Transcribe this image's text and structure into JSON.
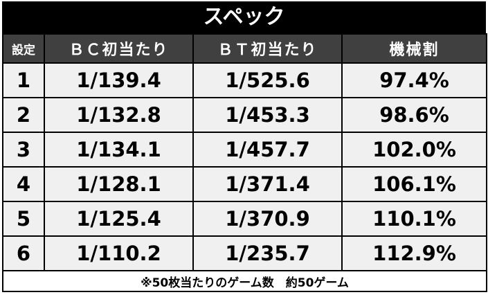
{
  "title": "スペック",
  "table": {
    "header": [
      "設定",
      "ＢＣ初当たり",
      "ＢＴ初当たり",
      "機械割"
    ],
    "rows": [
      [
        "1",
        "1/139.4",
        "1/525.6",
        "97.4%"
      ],
      [
        "2",
        "1/132.8",
        "1/453.3",
        "98.6%"
      ],
      [
        "3",
        "1/134.1",
        "1/457.7",
        "102.0%"
      ],
      [
        "4",
        "1/128.1",
        "1/371.4",
        "106.1%"
      ],
      [
        "5",
        "1/125.4",
        "1/370.9",
        "110.1%"
      ],
      [
        "6",
        "1/110.2",
        "1/235.7",
        "112.9%"
      ]
    ]
  },
  "footnote": "※50枚当たりのゲーム数　約50ゲーム"
}
